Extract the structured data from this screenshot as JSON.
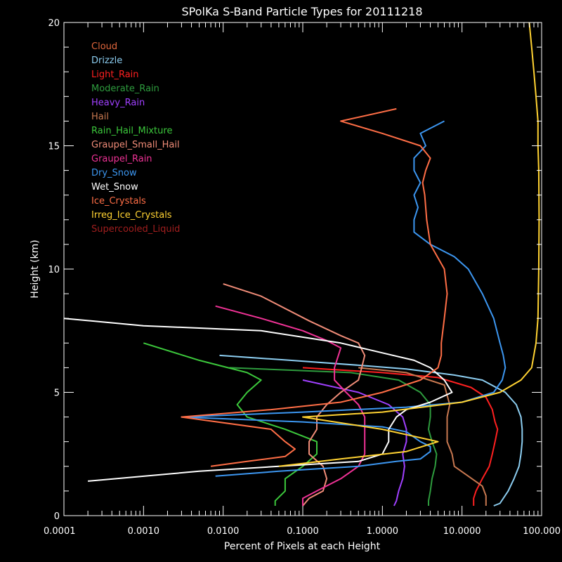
{
  "chart_data": {
    "type": "line",
    "title": "SPolKa S-Band Particle Types for 20111218",
    "xlabel": "Percent of Pixels at each Height",
    "ylabel": "Height (km)",
    "xscale": "log",
    "xlim": [
      0.0001,
      100
    ],
    "ylim": [
      0,
      20
    ],
    "xticks": [
      {
        "value": 0.0001,
        "label": "0.0001"
      },
      {
        "value": 0.001,
        "label": "0.0010"
      },
      {
        "value": 0.01,
        "label": "0.0100"
      },
      {
        "value": 0.1,
        "label": "0.1000"
      },
      {
        "value": 1,
        "label": "1.0000"
      },
      {
        "value": 10,
        "label": "10.0000"
      },
      {
        "value": 100,
        "label": "100.000"
      }
    ],
    "yticks": [
      {
        "value": 0,
        "label": "0"
      },
      {
        "value": 5,
        "label": "5"
      },
      {
        "value": 10,
        "label": "10"
      },
      {
        "value": 15,
        "label": "15"
      },
      {
        "value": 20,
        "label": "20"
      }
    ],
    "grid": false,
    "legend_position": "top-left",
    "colors": {
      "background": "#000000",
      "axes": "#ffffff",
      "text": "#ffffff"
    },
    "series": [
      {
        "name": "Cloud",
        "color": "#e0663c",
        "points": []
      },
      {
        "name": "Drizzle",
        "color": "#8ccdf0",
        "points": [
          [
            0.009,
            6.5
          ],
          [
            0.07,
            6.3
          ],
          [
            0.5,
            6.1
          ],
          [
            2,
            5.95
          ],
          [
            8,
            5.7
          ],
          [
            18,
            5.5
          ],
          [
            35,
            5
          ],
          [
            48,
            4.5
          ],
          [
            55,
            4
          ],
          [
            57,
            3.5
          ],
          [
            57,
            3
          ],
          [
            55,
            2.5
          ],
          [
            52,
            2
          ],
          [
            45,
            1.5
          ],
          [
            38,
            1
          ],
          [
            30,
            0.5
          ],
          [
            25,
            0.4
          ]
        ]
      },
      {
        "name": "Light_Rain",
        "color": "#ff2020",
        "points": [
          [
            0.1,
            6
          ],
          [
            1,
            5.8
          ],
          [
            5,
            5.6
          ],
          [
            13,
            5.2
          ],
          [
            20,
            4.8
          ],
          [
            24,
            4.3
          ],
          [
            26,
            3.8
          ],
          [
            28,
            3.5
          ],
          [
            26,
            3
          ],
          [
            24,
            2.5
          ],
          [
            22,
            2
          ],
          [
            18,
            1.5
          ],
          [
            15,
            1
          ],
          [
            14,
            0.7
          ],
          [
            14,
            0.4
          ]
        ]
      },
      {
        "name": "Moderate_Rain",
        "color": "#2e9c3e",
        "points": [
          [
            0.012,
            6
          ],
          [
            0.4,
            5.8
          ],
          [
            1.6,
            5.5
          ],
          [
            3,
            5
          ],
          [
            4,
            4.5
          ],
          [
            4,
            4
          ],
          [
            3.8,
            3.5
          ],
          [
            4.2,
            3
          ],
          [
            4.8,
            2.5
          ],
          [
            4.6,
            2
          ],
          [
            4.2,
            1.5
          ],
          [
            4,
            1
          ],
          [
            3.8,
            0.6
          ],
          [
            3.8,
            0.4
          ]
        ]
      },
      {
        "name": "Heavy_Rain",
        "color": "#a040ff",
        "points": [
          [
            0.1,
            5.5
          ],
          [
            0.5,
            5
          ],
          [
            1.2,
            4.5
          ],
          [
            1.8,
            4
          ],
          [
            2,
            3.5
          ],
          [
            2,
            3
          ],
          [
            1.8,
            2.5
          ],
          [
            1.9,
            2
          ],
          [
            1.8,
            1.5
          ],
          [
            1.6,
            1
          ],
          [
            1.5,
            0.6
          ],
          [
            1.4,
            0.4
          ]
        ]
      },
      {
        "name": "Hail",
        "color": "#c87850",
        "points": [
          [
            0.5,
            6
          ],
          [
            2,
            5.8
          ],
          [
            6,
            5.3
          ],
          [
            7,
            4.5
          ],
          [
            6.5,
            4
          ],
          [
            6.5,
            3.5
          ],
          [
            6.5,
            3
          ],
          [
            7.5,
            2.5
          ],
          [
            8,
            2
          ],
          [
            12,
            1.6
          ],
          [
            18,
            1.2
          ],
          [
            20,
            0.8
          ],
          [
            20,
            0.4
          ]
        ]
      },
      {
        "name": "Rain_Hail_Mixture",
        "color": "#3cc83c",
        "points": [
          [
            0.001,
            7
          ],
          [
            0.005,
            6.3
          ],
          [
            0.02,
            5.8
          ],
          [
            0.03,
            5.5
          ],
          [
            0.02,
            5
          ],
          [
            0.015,
            4.5
          ],
          [
            0.02,
            4
          ],
          [
            0.06,
            3.5
          ],
          [
            0.15,
            3
          ],
          [
            0.15,
            2.5
          ],
          [
            0.1,
            2
          ],
          [
            0.06,
            1.5
          ],
          [
            0.06,
            1
          ],
          [
            0.045,
            0.6
          ],
          [
            0.045,
            0.4
          ]
        ]
      },
      {
        "name": "Graupel_Small_Hail",
        "color": "#f08c78",
        "points": [
          [
            0.01,
            9.4
          ],
          [
            0.03,
            8.9
          ],
          [
            0.12,
            7.9
          ],
          [
            0.3,
            7.3
          ],
          [
            0.5,
            7
          ],
          [
            0.6,
            6.5
          ],
          [
            0.55,
            6
          ],
          [
            0.5,
            5.5
          ],
          [
            0.3,
            5
          ],
          [
            0.2,
            4.5
          ],
          [
            0.15,
            4
          ],
          [
            0.15,
            3.5
          ],
          [
            0.12,
            3
          ],
          [
            0.12,
            2.5
          ],
          [
            0.18,
            2
          ],
          [
            0.2,
            1.5
          ],
          [
            0.18,
            1
          ],
          [
            0.12,
            0.7
          ],
          [
            0.1,
            0.4
          ]
        ]
      },
      {
        "name": "Graupel_Rain",
        "color": "#f03296",
        "points": [
          [
            0.008,
            8.5
          ],
          [
            0.03,
            8
          ],
          [
            0.1,
            7.5
          ],
          [
            0.2,
            7.1
          ],
          [
            0.3,
            6.8
          ],
          [
            0.28,
            6.5
          ],
          [
            0.25,
            6
          ],
          [
            0.25,
            5.5
          ],
          [
            0.35,
            5
          ],
          [
            0.5,
            4.5
          ],
          [
            0.6,
            4
          ],
          [
            0.6,
            3.5
          ],
          [
            0.6,
            3
          ],
          [
            0.6,
            2.5
          ],
          [
            0.5,
            2
          ],
          [
            0.3,
            1.5
          ],
          [
            0.15,
            1
          ],
          [
            0.1,
            0.7
          ],
          [
            0.1,
            0.4
          ]
        ]
      },
      {
        "name": "Dry_Snow",
        "color": "#3c96f0",
        "points": [
          [
            6,
            16
          ],
          [
            3,
            15.5
          ],
          [
            3.5,
            15
          ],
          [
            2.5,
            14.5
          ],
          [
            2.5,
            14
          ],
          [
            3,
            13.5
          ],
          [
            2.5,
            13
          ],
          [
            2.8,
            12.5
          ],
          [
            2.5,
            12
          ],
          [
            2.5,
            11.5
          ],
          [
            4,
            11
          ],
          [
            8,
            10.5
          ],
          [
            12,
            10
          ],
          [
            18,
            9
          ],
          [
            25,
            8
          ],
          [
            30,
            7
          ],
          [
            33,
            6.5
          ],
          [
            35,
            6
          ],
          [
            32,
            5.5
          ],
          [
            25,
            5
          ],
          [
            10,
            4.6
          ],
          [
            2,
            4.4
          ],
          [
            0.1,
            4.2
          ],
          [
            0.003,
            4
          ],
          [
            0.1,
            3.8
          ],
          [
            1,
            3.6
          ],
          [
            2,
            3.4
          ],
          [
            3,
            3
          ],
          [
            4,
            2.8
          ],
          [
            4,
            2.6
          ],
          [
            3,
            2.3
          ],
          [
            1.5,
            2.2
          ],
          [
            0.5,
            2
          ],
          [
            0.05,
            1.8
          ],
          [
            0.008,
            1.6
          ]
        ]
      },
      {
        "name": "Wet_Snow",
        "color": "#ffffff",
        "points": [
          [
            0.0001,
            8
          ],
          [
            0.001,
            7.7
          ],
          [
            0.03,
            7.5
          ],
          [
            0.3,
            7
          ],
          [
            1,
            6.6
          ],
          [
            2.5,
            6.3
          ],
          [
            4,
            6
          ],
          [
            6,
            5.5
          ],
          [
            7.5,
            5
          ],
          [
            4,
            4.6
          ],
          [
            2,
            4.3
          ],
          [
            1.5,
            4
          ],
          [
            1.2,
            3.5
          ],
          [
            1.2,
            3
          ],
          [
            1,
            2.5
          ],
          [
            0.5,
            2.2
          ],
          [
            0.05,
            2
          ],
          [
            0.005,
            1.8
          ],
          [
            0.0002,
            1.4
          ]
        ]
      },
      {
        "name": "Ice_Crystals",
        "color": "#ff6e46",
        "points": [
          [
            1.5,
            16.5
          ],
          [
            0.3,
            16
          ],
          [
            1,
            15.5
          ],
          [
            3,
            15
          ],
          [
            4,
            14.5
          ],
          [
            3.5,
            14
          ],
          [
            3.2,
            13.5
          ],
          [
            3.4,
            13
          ],
          [
            3.6,
            12
          ],
          [
            4,
            11
          ],
          [
            6,
            10
          ],
          [
            6.5,
            9
          ],
          [
            6,
            8
          ],
          [
            5.5,
            7
          ],
          [
            5.5,
            6.5
          ],
          [
            5,
            6
          ],
          [
            3,
            5.5
          ],
          [
            1,
            5
          ],
          [
            0.3,
            4.6
          ],
          [
            0.04,
            4.3
          ],
          [
            0.003,
            4
          ],
          [
            0.04,
            3.5
          ],
          [
            0.06,
            3
          ],
          [
            0.08,
            2.7
          ],
          [
            0.06,
            2.4
          ],
          [
            0.02,
            2.2
          ],
          [
            0.007,
            2
          ]
        ]
      },
      {
        "name": "Irreg_Ice_Crystals",
        "color": "#ffd232",
        "points": [
          [
            70,
            20
          ],
          [
            75,
            19
          ],
          [
            80,
            18
          ],
          [
            85,
            17
          ],
          [
            90,
            16
          ],
          [
            90,
            15
          ],
          [
            92,
            14
          ],
          [
            93,
            12
          ],
          [
            92,
            10
          ],
          [
            90,
            8
          ],
          [
            85,
            7
          ],
          [
            75,
            6
          ],
          [
            55,
            5.5
          ],
          [
            30,
            5
          ],
          [
            10,
            4.6
          ],
          [
            1,
            4.2
          ],
          [
            0.1,
            4
          ],
          [
            1,
            3.5
          ],
          [
            5,
            3
          ],
          [
            2,
            2.6
          ],
          [
            0.3,
            2.3
          ],
          [
            0.05,
            2
          ]
        ]
      },
      {
        "name": "Supercooled_Liquid",
        "color": "#a01e1e",
        "points": []
      }
    ]
  }
}
